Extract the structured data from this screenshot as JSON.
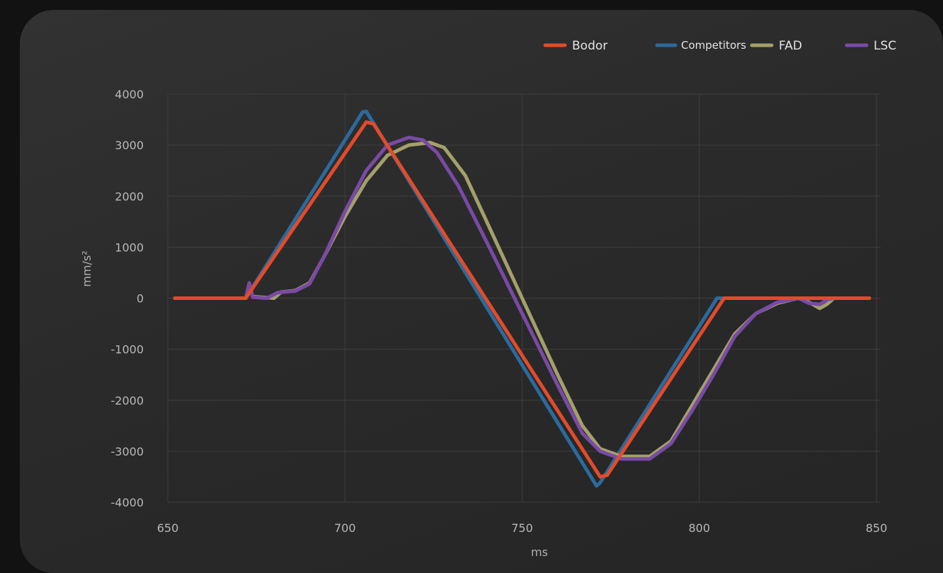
{
  "chart_data": {
    "type": "line",
    "title": "",
    "xlabel": "ms",
    "ylabel": "mm/s²",
    "xlim": [
      650,
      850
    ],
    "ylim": [
      -4000,
      4000
    ],
    "x_ticks": [
      650,
      700,
      750,
      800,
      850
    ],
    "y_ticks": [
      4000,
      3000,
      2000,
      1000,
      0,
      -1000,
      -2000,
      -3000,
      -4000
    ],
    "grid": true,
    "legend_position": "top-right",
    "series": [
      {
        "name": "Competitors",
        "color": "#2c6a9c",
        "points": [
          [
            652,
            0
          ],
          [
            672,
            0
          ],
          [
            705,
            3650
          ],
          [
            706,
            3660
          ],
          [
            707,
            3550
          ],
          [
            771,
            -3680
          ],
          [
            772,
            -3620
          ],
          [
            805,
            0
          ],
          [
            848,
            0
          ]
        ]
      },
      {
        "name": "FAD",
        "color": "#a3a06a",
        "points": [
          [
            652,
            0
          ],
          [
            672,
            0
          ],
          [
            673,
            250
          ],
          [
            674,
            30
          ],
          [
            680,
            0
          ],
          [
            682,
            120
          ],
          [
            686,
            150
          ],
          [
            690,
            300
          ],
          [
            694,
            800
          ],
          [
            700,
            1600
          ],
          [
            706,
            2300
          ],
          [
            712,
            2800
          ],
          [
            718,
            3000
          ],
          [
            724,
            3050
          ],
          [
            728,
            2950
          ],
          [
            734,
            2400
          ],
          [
            740,
            1500
          ],
          [
            750,
            0
          ],
          [
            760,
            -1500
          ],
          [
            767,
            -2500
          ],
          [
            772,
            -2950
          ],
          [
            778,
            -3100
          ],
          [
            786,
            -3100
          ],
          [
            792,
            -2800
          ],
          [
            798,
            -2100
          ],
          [
            804,
            -1400
          ],
          [
            810,
            -700
          ],
          [
            816,
            -300
          ],
          [
            822,
            -100
          ],
          [
            828,
            0
          ],
          [
            831,
            -80
          ],
          [
            834,
            -200
          ],
          [
            836,
            -120
          ],
          [
            838,
            0
          ],
          [
            848,
            0
          ]
        ]
      },
      {
        "name": "LSC",
        "color": "#7a4aa6",
        "points": [
          [
            652,
            0
          ],
          [
            672,
            0
          ],
          [
            673,
            300
          ],
          [
            674,
            20
          ],
          [
            678,
            0
          ],
          [
            681,
            110
          ],
          [
            686,
            140
          ],
          [
            690,
            280
          ],
          [
            694,
            800
          ],
          [
            700,
            1700
          ],
          [
            706,
            2500
          ],
          [
            712,
            3000
          ],
          [
            718,
            3150
          ],
          [
            722,
            3100
          ],
          [
            726,
            2850
          ],
          [
            732,
            2200
          ],
          [
            740,
            1100
          ],
          [
            750,
            -300
          ],
          [
            760,
            -1700
          ],
          [
            767,
            -2650
          ],
          [
            772,
            -3000
          ],
          [
            778,
            -3150
          ],
          [
            786,
            -3150
          ],
          [
            792,
            -2850
          ],
          [
            798,
            -2200
          ],
          [
            804,
            -1500
          ],
          [
            810,
            -750
          ],
          [
            816,
            -300
          ],
          [
            822,
            -80
          ],
          [
            828,
            0
          ],
          [
            831,
            -100
          ],
          [
            834,
            -120
          ],
          [
            836,
            -30
          ],
          [
            838,
            0
          ],
          [
            848,
            0
          ]
        ]
      },
      {
        "name": "Bodor",
        "color": "#e24b2a",
        "points": [
          [
            652,
            0
          ],
          [
            672,
            0
          ],
          [
            706,
            3450
          ],
          [
            708,
            3420
          ],
          [
            772,
            -3500
          ],
          [
            774,
            -3470
          ],
          [
            807,
            0
          ],
          [
            848,
            0
          ]
        ]
      }
    ]
  },
  "legend": [
    {
      "name": "Bodor",
      "color": "#e24b2a"
    },
    {
      "name": "Competitors",
      "color": "#2c6a9c"
    },
    {
      "name": "FAD",
      "color": "#a3a06a"
    },
    {
      "name": "LSC",
      "color": "#7a4aa6"
    }
  ]
}
